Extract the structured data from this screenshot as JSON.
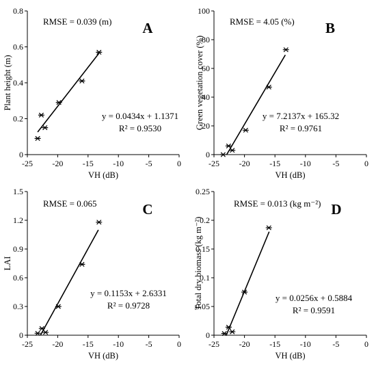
{
  "chart_data": [
    {
      "type": "scatter",
      "panel_label": "A",
      "xlabel": "VH (dB)",
      "ylabel": "Plant height (m)",
      "xlim": [
        -25,
        0
      ],
      "ylim": [
        0,
        0.8
      ],
      "xticks": [
        -25,
        -20,
        -15,
        -10,
        -5,
        0
      ],
      "yticks": [
        0,
        0.2,
        0.4,
        0.6,
        0.8
      ],
      "xtick_labels": [
        "-25",
        "-20",
        "-15",
        "-10",
        "-5",
        "0"
      ],
      "ytick_labels": [
        "0",
        "0.2",
        "0.4",
        "0.6",
        "0.8"
      ],
      "points": {
        "x": [
          -23.3,
          -22.7,
          -22.1,
          -19.8,
          -16.0,
          -13.2
        ],
        "y": [
          0.09,
          0.22,
          0.15,
          0.29,
          0.41,
          0.57
        ]
      },
      "fit": {
        "slope": 0.0434,
        "intercept": 1.1371,
        "x_range": [
          -23.3,
          -13.2
        ]
      },
      "rmse_text": "RMSE = 0.039 (m)",
      "equation_text": "y = 0.0434x + 1.1371",
      "r2_text": "R² = 0.9530"
    },
    {
      "type": "scatter",
      "panel_label": "B",
      "xlabel": "VH (dB)",
      "ylabel": "Green vegetation cover (%)",
      "xlim": [
        -25,
        0
      ],
      "ylim": [
        0,
        100
      ],
      "xticks": [
        -25,
        -20,
        -15,
        -10,
        -5,
        0
      ],
      "yticks": [
        0,
        20,
        40,
        60,
        80,
        100
      ],
      "xtick_labels": [
        "-25",
        "-20",
        "-15",
        "-10",
        "-5",
        "0"
      ],
      "ytick_labels": [
        "0",
        "20",
        "40",
        "60",
        "80",
        "100"
      ],
      "points": {
        "x": [
          -23.5,
          -22.6,
          -22.0,
          -19.8,
          -16.0,
          -13.2
        ],
        "y": [
          0,
          6,
          3,
          17,
          47,
          73
        ]
      },
      "fit": {
        "slope": 7.2137,
        "intercept": 165.32,
        "x_range": [
          -22.9,
          -13.3
        ]
      },
      "rmse_text": "RMSE = 4.05 (%)",
      "equation_text": "y = 7.2137x + 165.32",
      "r2_text": "R² = 0.9761"
    },
    {
      "type": "scatter",
      "panel_label": "C",
      "xlabel": "VH (dB)",
      "ylabel": "LAI",
      "xlim": [
        -25,
        0
      ],
      "ylim": [
        0,
        1.5
      ],
      "xticks": [
        -25,
        -20,
        -15,
        -10,
        -5,
        0
      ],
      "yticks": [
        0,
        0.3,
        0.6,
        0.9,
        1.2,
        1.5
      ],
      "xtick_labels": [
        "-25",
        "-20",
        "-15",
        "-10",
        "-5",
        "0"
      ],
      "ytick_labels": [
        "0",
        "0.3",
        "0.6",
        "0.9",
        "1.2",
        "1.5"
      ],
      "points": {
        "x": [
          -23.3,
          -22.6,
          -22.0,
          -19.9,
          -16.0,
          -13.2
        ],
        "y": [
          0.02,
          0.07,
          0.03,
          0.3,
          0.74,
          1.18
        ]
      },
      "fit": {
        "slope": 0.1153,
        "intercept": 2.6331,
        "x_range": [
          -22.84,
          -13.3
        ]
      },
      "rmse_text": "RMSE = 0.065",
      "equation_text": "y = 0.1153x + 2.6331",
      "r2_text": "R² = 0.9728"
    },
    {
      "type": "scatter",
      "panel_label": "D",
      "xlabel": "VH (dB)",
      "ylabel": "Total dry biomass (kg m⁻²)",
      "xlim": [
        -25,
        0
      ],
      "ylim": [
        0,
        0.25
      ],
      "xticks": [
        -25,
        -20,
        -15,
        -10,
        -5,
        0
      ],
      "yticks": [
        0,
        0.05,
        0.1,
        0.15,
        0.2,
        0.25
      ],
      "xtick_labels": [
        "-25",
        "-20",
        "-15",
        "-10",
        "-5",
        "0"
      ],
      "ytick_labels": [
        "0",
        "0.05",
        "0.1",
        "0.15",
        "0.2",
        "0.25"
      ],
      "points": {
        "x": [
          -23.3,
          -22.6,
          -22.0,
          -20.0,
          -16.0
        ],
        "y": [
          0.003,
          0.014,
          0.006,
          0.075,
          0.187
        ]
      },
      "fit": {
        "slope": 0.0256,
        "intercept": 0.5884,
        "x_range": [
          -22.98,
          -15.95
        ]
      },
      "rmse_text": "RMSE = 0.013 (kg m⁻²)",
      "equation_text": "y = 0.0256x + 0.5884",
      "r2_text": "R² = 0.9591"
    }
  ]
}
